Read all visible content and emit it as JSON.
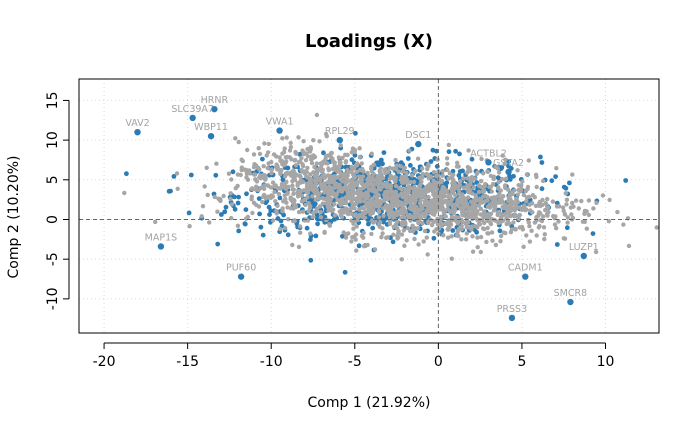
{
  "chart_data": {
    "type": "scatter",
    "title": "Loadings (X)",
    "xlabel": "Comp 1 (21.92%)",
    "ylabel": "Comp 2 (10.20%)",
    "xlim": [
      -21.5,
      13.2
    ],
    "ylim": [
      -14.3,
      17.7
    ],
    "x_ticks": [
      -20,
      -15,
      -10,
      -5,
      0,
      5,
      10
    ],
    "y_ticks": [
      -10,
      -5,
      0,
      5,
      10,
      15
    ],
    "grid": true,
    "reference_lines": {
      "x": 0,
      "y": 0
    },
    "colors": {
      "point": "#2b7bb5",
      "label": "#a3a3a3",
      "cloud": "#a6a6a6",
      "grid": "#d9d9d9",
      "refline": "#666666"
    },
    "labeled_points": [
      {
        "label": "HRNR",
        "x": -13.4,
        "y": 13.9
      },
      {
        "label": "SLC39A7",
        "x": -14.7,
        "y": 12.8
      },
      {
        "label": "VAV2",
        "x": -18.0,
        "y": 11.0
      },
      {
        "label": "WBP11",
        "x": -13.6,
        "y": 10.5
      },
      {
        "label": "MAP1S",
        "x": -16.6,
        "y": -3.4
      },
      {
        "label": "PUF60",
        "x": -11.8,
        "y": -7.2
      },
      {
        "label": "DSC1",
        "x": -1.2,
        "y": 9.5
      },
      {
        "label": "ACTBL2",
        "x": 3.0,
        "y": 7.2
      },
      {
        "label": "GSTA2",
        "x": 4.2,
        "y": 6.0
      },
      {
        "label": "VWA1",
        "x": -9.5,
        "y": 11.2
      },
      {
        "label": "RPL29",
        "x": -5.9,
        "y": 10.0
      },
      {
        "label": "LUZP1",
        "x": 8.7,
        "y": -4.6
      },
      {
        "label": "CADM1",
        "x": 5.2,
        "y": -7.2
      },
      {
        "label": "SMCR8",
        "x": 7.9,
        "y": -10.4
      },
      {
        "label": "PRSS3",
        "x": 4.4,
        "y": -12.4
      }
    ]
  }
}
